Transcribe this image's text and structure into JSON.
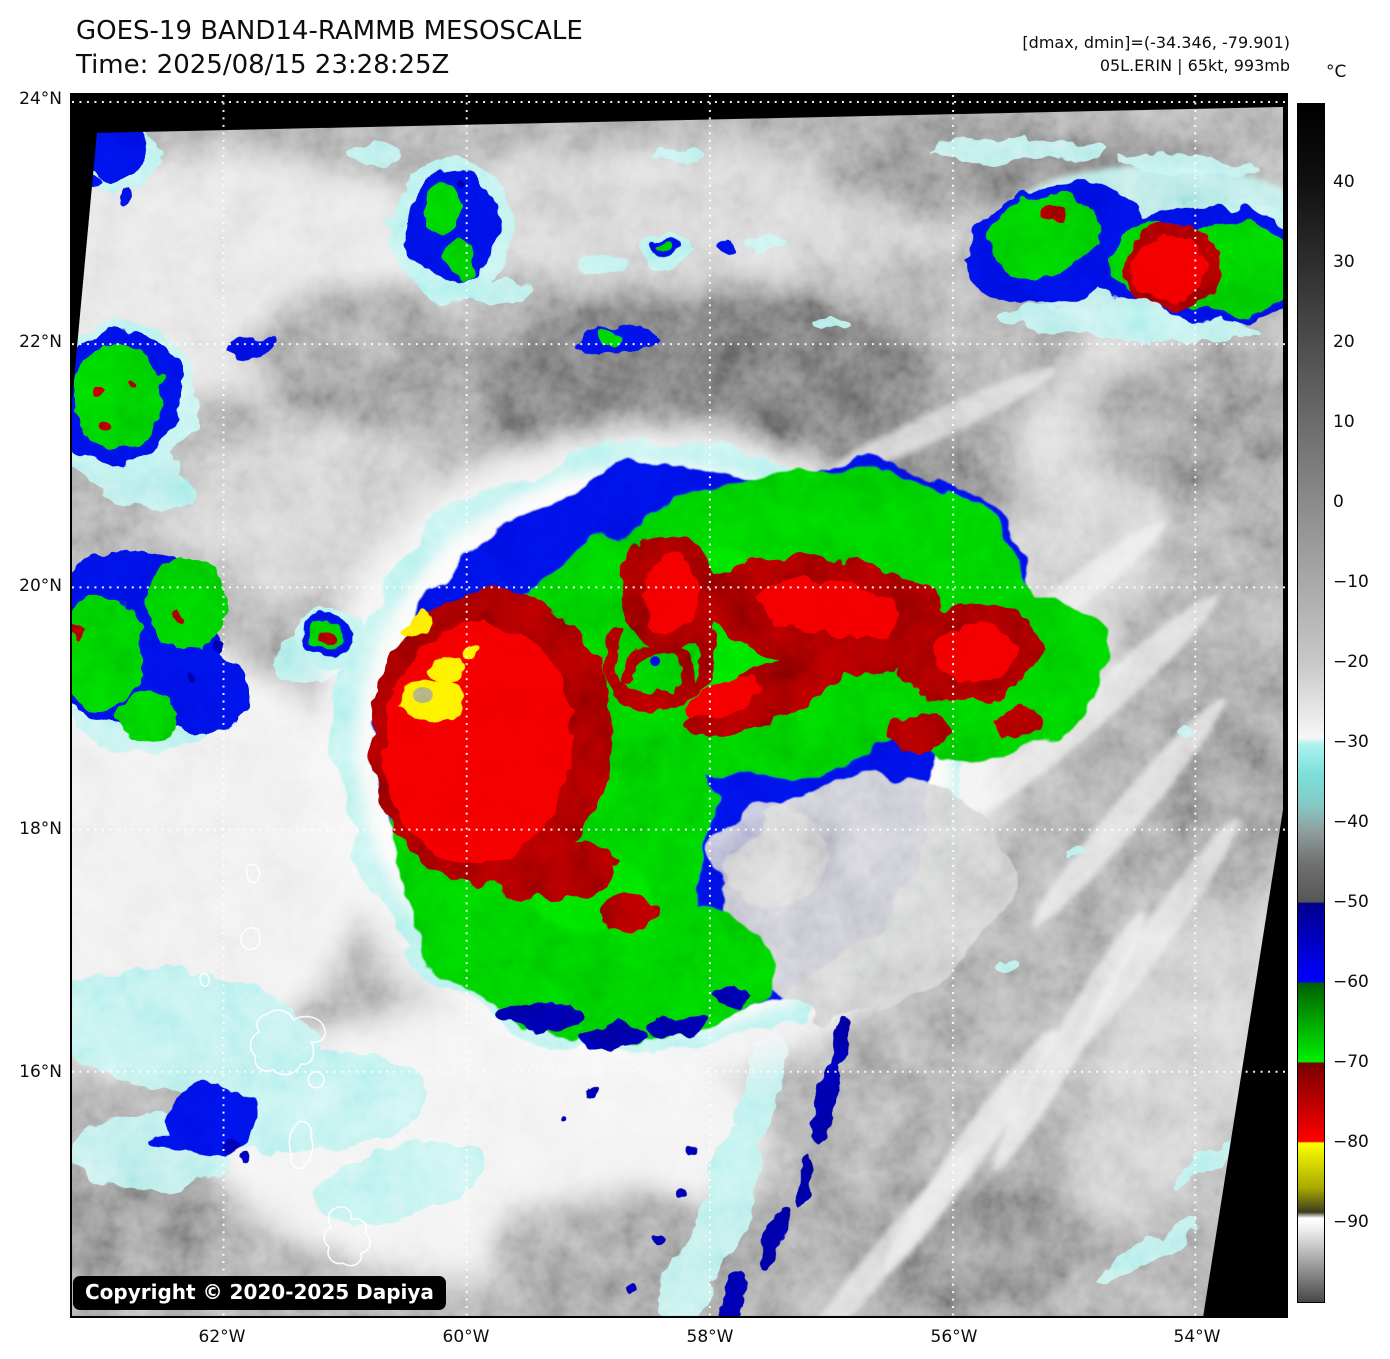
{
  "header": {
    "title": "GOES-19 BAND14-RAMMB MESOSCALE",
    "time": "Time: 2025/08/15 23:28:25Z",
    "dmax_dmin": "[dmax, dmin]=(-34.346, -79.901)",
    "storm": "05L.ERIN | 65kt, 993mb"
  },
  "colorbar": {
    "unit": "°C",
    "ticks": [
      {
        "label": "40",
        "value": 40
      },
      {
        "label": "30",
        "value": 30
      },
      {
        "label": "20",
        "value": 20
      },
      {
        "label": "10",
        "value": 10
      },
      {
        "label": "0",
        "value": 0
      },
      {
        "label": "−10",
        "value": -10
      },
      {
        "label": "−20",
        "value": -20
      },
      {
        "label": "−30",
        "value": -30
      },
      {
        "label": "−40",
        "value": -40
      },
      {
        "label": "−50",
        "value": -50
      },
      {
        "label": "−60",
        "value": -60
      },
      {
        "label": "−70",
        "value": -70
      },
      {
        "label": "−80",
        "value": -80
      },
      {
        "label": "−90",
        "value": -90
      }
    ]
  },
  "axes": {
    "lat": [
      "24°N",
      "22°N",
      "20°N",
      "18°N",
      "16°N"
    ],
    "lon": [
      "62°W",
      "60°W",
      "58°W",
      "56°W",
      "54°W"
    ]
  },
  "copyright": "Copyright © 2020-2025 Dapiya",
  "palette": {
    "no_data": "#000000",
    "cloud_base": "#9b9b9b",
    "cloud_white": "#f2f2f2",
    "cloud_dark": "#5e5e5e",
    "cyan": "#aef0ec",
    "blue": "#0008e0",
    "navy": "#000090",
    "green": "#00c400",
    "green_bright": "#00e400",
    "red_dark": "#8c0000",
    "red": "#f00000",
    "yellow": "#ffec00",
    "gridline": "#ffffff",
    "coastline": "#ffffff",
    "copyright_bg": "#000000",
    "copyright_text": "#ffffff"
  }
}
